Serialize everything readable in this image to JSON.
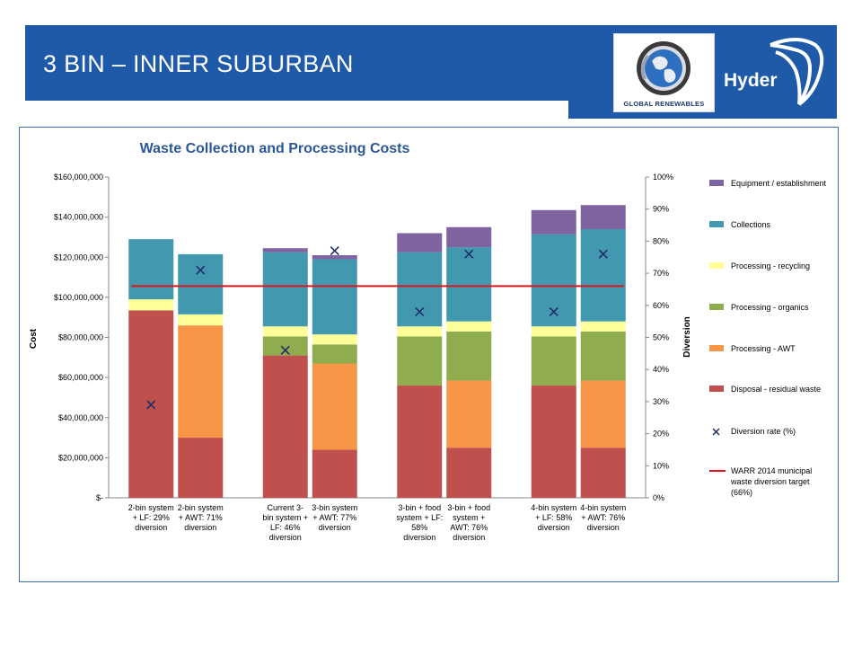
{
  "slide": {
    "title": "3 BIN – INNER SUBURBAN",
    "logo_left_text": "GLOBAL RENEWABLES",
    "logo_right_text": "Hyder"
  },
  "colors": {
    "header_blue": "#1e5aa8",
    "equipment": "#8064a2",
    "collections": "#4198af",
    "processing_recycling": "#ffff99",
    "processing_organics": "#8fac4e",
    "processing_awt": "#f79646",
    "disposal": "#c0504d",
    "diversion_marker": "#1f2d6b",
    "target_line": "#e0141a"
  },
  "chart_data": {
    "type": "bar",
    "stacked": true,
    "title": "Waste Collection and Processing Costs",
    "ylabel": "Cost",
    "y2label": "Diversion",
    "ylim": [
      0,
      160000000
    ],
    "y2lim": [
      0,
      100
    ],
    "yticks": [
      "$160,000,000",
      "$140,000,000",
      "$120,000,000",
      "$100,000,000",
      "$80,000,000",
      "$60,000,000",
      "$40,000,000",
      "$20,000,000",
      "$-"
    ],
    "y2ticks": [
      "100%",
      "90%",
      "80%",
      "70%",
      "60%",
      "50%",
      "40%",
      "30%",
      "20%",
      "10%",
      "0%"
    ],
    "categories": [
      [
        "2-bin system",
        "+ LF: 29%",
        "diversion"
      ],
      [
        "2-bin system",
        "+ AWT: 71%",
        "diversion"
      ],
      [
        "Current 3-",
        "bin system +",
        "LF: 46%",
        "diversion"
      ],
      [
        "3-bin system",
        "+ AWT: 77%",
        "diversion"
      ],
      [
        "3-bin + food",
        "system + LF:",
        "58%",
        "diversion"
      ],
      [
        "3-bin + food",
        "system +",
        "AWT: 76%",
        "diversion"
      ],
      [
        "4-bin system",
        "+ LF: 58%",
        "diversion"
      ],
      [
        "4-bin system",
        "+ AWT: 76%",
        "diversion"
      ]
    ],
    "groups": [
      [
        0,
        1
      ],
      [
        2,
        3
      ],
      [
        4,
        5
      ],
      [
        6,
        7
      ]
    ],
    "series": [
      {
        "name": "Disposal - residual waste",
        "color": "#c0504d",
        "values": [
          93500000,
          30000000,
          71000000,
          24000000,
          56000000,
          25000000,
          56000000,
          25000000
        ]
      },
      {
        "name": "Processing - AWT",
        "color": "#f79646",
        "values": [
          0,
          56000000,
          0,
          43000000,
          0,
          33500000,
          0,
          33500000
        ]
      },
      {
        "name": "Processing - organics",
        "color": "#8fac4e",
        "values": [
          0,
          0,
          9500000,
          9500000,
          24500000,
          24500000,
          24500000,
          24500000
        ]
      },
      {
        "name": "Processing - recycling",
        "color": "#ffff99",
        "values": [
          5500000,
          5500000,
          5000000,
          5000000,
          5000000,
          5000000,
          5000000,
          5000000
        ]
      },
      {
        "name": "Collections",
        "color": "#4198af",
        "values": [
          30000000,
          30000000,
          37000000,
          37500000,
          37000000,
          37000000,
          46000000,
          46000000
        ]
      },
      {
        "name": "Equipment / establishment",
        "color": "#8064a2",
        "values": [
          0,
          0,
          2000000,
          2000000,
          9500000,
          10000000,
          12000000,
          12000000
        ]
      }
    ],
    "diversion_rate": {
      "name": "Diversion rate (%)",
      "values": [
        29,
        71,
        46,
        77,
        58,
        76,
        58,
        76
      ]
    },
    "target_line": {
      "name": "WARR 2014 municipal waste diversion target (66%)",
      "label_lines": [
        "WARR 2014 municipal",
        "waste diversion target",
        "(66%)"
      ],
      "value": 66
    },
    "legend_position": "right",
    "grid": false
  }
}
